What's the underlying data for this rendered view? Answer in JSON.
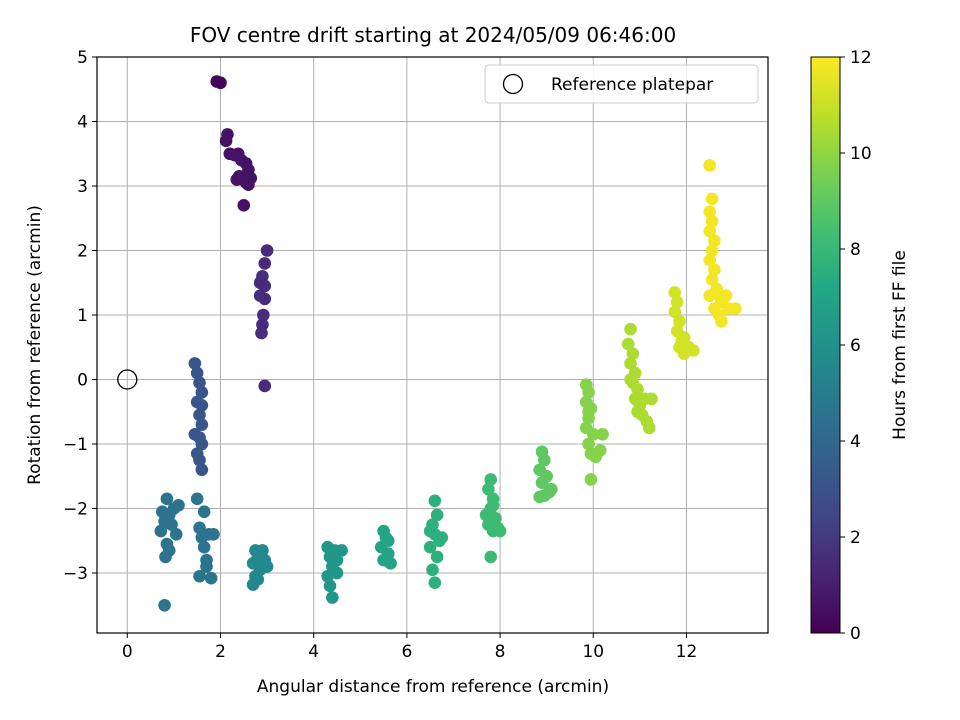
{
  "chart_data": {
    "type": "scatter",
    "title": "FOV centre drift starting at 2024/05/09 06:46:00",
    "xlabel": "Angular distance from reference (arcmin)",
    "ylabel": "Rotation from reference (arcmin)",
    "xlim": [
      -0.65,
      13.75
    ],
    "ylim": [
      -3.93,
      5.0
    ],
    "xticks": [
      0,
      2,
      4,
      6,
      8,
      10,
      12
    ],
    "yticks": [
      -3,
      -2,
      -1,
      0,
      1,
      2,
      3,
      4,
      5
    ],
    "grid": true,
    "legend": {
      "placement": "top-right",
      "entries": [
        "Reference platepar"
      ]
    },
    "reference_point": {
      "x": 0,
      "y": 0
    },
    "colorbar": {
      "label": "Hours from first FF file",
      "range": [
        0,
        12
      ],
      "ticks": [
        0,
        2,
        4,
        6,
        8,
        10,
        12
      ],
      "colormap": "viridis"
    },
    "clusters": [
      {
        "t": 0.1,
        "points": [
          [
            1.92,
            4.62
          ],
          [
            2.0,
            4.6
          ]
        ]
      },
      {
        "t": 0.6,
        "points": [
          [
            2.15,
            3.8
          ],
          [
            2.12,
            3.7
          ],
          [
            2.2,
            3.5
          ],
          [
            2.3,
            3.48
          ],
          [
            2.38,
            3.5
          ],
          [
            2.45,
            3.4
          ],
          [
            2.55,
            3.35
          ],
          [
            2.6,
            3.25
          ],
          [
            2.4,
            3.15
          ],
          [
            2.5,
            3.1
          ],
          [
            2.55,
            3.05
          ],
          [
            2.35,
            3.1
          ],
          [
            2.65,
            3.12
          ],
          [
            2.6,
            3.02
          ],
          [
            2.5,
            2.7
          ]
        ]
      },
      {
        "t": 1.5,
        "points": [
          [
            3.0,
            2.0
          ],
          [
            2.95,
            1.8
          ],
          [
            2.9,
            1.6
          ],
          [
            2.85,
            1.5
          ],
          [
            2.95,
            1.45
          ],
          [
            2.85,
            1.3
          ],
          [
            2.95,
            1.25
          ],
          [
            2.92,
            1.0
          ],
          [
            2.9,
            0.85
          ],
          [
            2.88,
            0.72
          ],
          [
            2.95,
            -0.1
          ]
        ]
      },
      {
        "t": 3.2,
        "points": [
          [
            1.45,
            0.25
          ],
          [
            1.5,
            0.1
          ],
          [
            1.55,
            -0.05
          ],
          [
            1.6,
            -0.2
          ],
          [
            1.5,
            -0.35
          ],
          [
            1.6,
            -0.4
          ],
          [
            1.55,
            -0.55
          ],
          [
            1.6,
            -0.7
          ],
          [
            1.45,
            -0.85
          ],
          [
            1.55,
            -0.9
          ],
          [
            1.6,
            -1.0
          ],
          [
            1.5,
            -1.15
          ],
          [
            1.55,
            -1.25
          ],
          [
            1.6,
            -1.4
          ]
        ]
      },
      {
        "t": 4.6,
        "points": [
          [
            0.75,
            -2.05
          ],
          [
            0.8,
            -2.2
          ],
          [
            0.72,
            -2.35
          ],
          [
            0.85,
            -1.85
          ],
          [
            0.9,
            -2.1
          ],
          [
            0.95,
            -2.25
          ],
          [
            1.0,
            -2.0
          ],
          [
            1.05,
            -2.4
          ],
          [
            0.85,
            -2.55
          ],
          [
            0.9,
            -2.65
          ],
          [
            0.82,
            -2.75
          ],
          [
            1.1,
            -1.95
          ],
          [
            0.8,
            -3.5
          ],
          [
            1.5,
            -1.85
          ],
          [
            1.55,
            -2.3
          ],
          [
            1.6,
            -2.45
          ],
          [
            1.65,
            -2.6
          ],
          [
            1.7,
            -2.8
          ],
          [
            1.55,
            -3.05
          ],
          [
            1.8,
            -3.08
          ],
          [
            1.75,
            -2.4
          ],
          [
            1.65,
            -2.05
          ],
          [
            1.85,
            -2.4
          ],
          [
            1.7,
            -2.9
          ]
        ]
      },
      {
        "t": 5.6,
        "points": [
          [
            2.75,
            -2.65
          ],
          [
            2.8,
            -2.75
          ],
          [
            2.7,
            -2.85
          ],
          [
            2.85,
            -2.95
          ],
          [
            2.75,
            -3.05
          ],
          [
            2.9,
            -2.65
          ],
          [
            2.95,
            -2.8
          ],
          [
            2.8,
            -3.1
          ],
          [
            2.7,
            -3.18
          ],
          [
            3.0,
            -2.9
          ],
          [
            2.85,
            -2.7
          ]
        ]
      },
      {
        "t": 6.3,
        "points": [
          [
            4.3,
            -2.6
          ],
          [
            4.35,
            -2.75
          ],
          [
            4.4,
            -2.9
          ],
          [
            4.3,
            -3.05
          ],
          [
            4.45,
            -2.65
          ],
          [
            4.5,
            -2.8
          ],
          [
            4.35,
            -3.2
          ],
          [
            4.4,
            -3.38
          ],
          [
            4.6,
            -2.65
          ],
          [
            4.5,
            -3.0
          ]
        ]
      },
      {
        "t": 7.0,
        "points": [
          [
            5.5,
            -2.35
          ],
          [
            5.55,
            -2.45
          ],
          [
            5.45,
            -2.6
          ],
          [
            5.6,
            -2.7
          ],
          [
            5.5,
            -2.8
          ],
          [
            5.65,
            -2.85
          ],
          [
            5.6,
            -2.5
          ]
        ]
      },
      {
        "t": 7.6,
        "points": [
          [
            6.6,
            -1.88
          ],
          [
            6.65,
            -2.1
          ],
          [
            6.55,
            -2.25
          ],
          [
            6.6,
            -2.4
          ],
          [
            6.7,
            -2.5
          ],
          [
            6.5,
            -2.6
          ],
          [
            6.65,
            -2.75
          ],
          [
            6.55,
            -2.95
          ],
          [
            6.6,
            -3.15
          ],
          [
            6.75,
            -2.45
          ],
          [
            6.5,
            -2.35
          ]
        ]
      },
      {
        "t": 8.2,
        "points": [
          [
            7.8,
            -1.55
          ],
          [
            7.75,
            -1.7
          ],
          [
            7.85,
            -1.85
          ],
          [
            7.8,
            -2.0
          ],
          [
            7.9,
            -2.15
          ],
          [
            7.75,
            -2.25
          ],
          [
            7.85,
            -2.35
          ],
          [
            7.95,
            -2.3
          ],
          [
            8.0,
            -2.35
          ],
          [
            7.8,
            -2.75
          ],
          [
            7.85,
            -1.95
          ],
          [
            7.7,
            -2.1
          ]
        ]
      },
      {
        "t": 9.0,
        "points": [
          [
            8.9,
            -1.12
          ],
          [
            8.95,
            -1.25
          ],
          [
            8.85,
            -1.4
          ],
          [
            9.0,
            -1.5
          ],
          [
            8.9,
            -1.6
          ],
          [
            9.05,
            -1.75
          ],
          [
            8.95,
            -1.8
          ],
          [
            8.85,
            -1.82
          ],
          [
            9.1,
            -1.7
          ]
        ]
      },
      {
        "t": 9.8,
        "points": [
          [
            9.85,
            -0.08
          ],
          [
            9.9,
            -0.2
          ],
          [
            9.85,
            -0.35
          ],
          [
            9.95,
            -0.45
          ],
          [
            9.9,
            -0.6
          ],
          [
            9.85,
            -0.75
          ],
          [
            10.0,
            -0.85
          ],
          [
            9.9,
            -1.0
          ],
          [
            9.95,
            -1.15
          ],
          [
            10.05,
            -1.2
          ],
          [
            10.15,
            -1.1
          ],
          [
            10.2,
            -0.85
          ],
          [
            9.95,
            -1.55
          ],
          [
            9.9,
            -0.5
          ]
        ]
      },
      {
        "t": 10.5,
        "points": [
          [
            10.8,
            0.78
          ],
          [
            10.75,
            0.55
          ],
          [
            10.85,
            0.4
          ],
          [
            10.8,
            0.25
          ],
          [
            10.9,
            0.1
          ],
          [
            10.85,
            -0.05
          ],
          [
            10.95,
            -0.15
          ],
          [
            10.9,
            -0.3
          ],
          [
            11.0,
            -0.4
          ],
          [
            10.95,
            -0.5
          ],
          [
            11.05,
            -0.55
          ],
          [
            11.1,
            -0.3
          ],
          [
            11.15,
            -0.65
          ],
          [
            11.2,
            -0.75
          ],
          [
            11.25,
            -0.3
          ],
          [
            10.8,
            0.0
          ]
        ]
      },
      {
        "t": 11.2,
        "points": [
          [
            11.75,
            1.35
          ],
          [
            11.8,
            1.2
          ],
          [
            11.75,
            1.05
          ],
          [
            11.85,
            0.9
          ],
          [
            11.8,
            0.75
          ],
          [
            11.9,
            0.6
          ],
          [
            11.85,
            0.5
          ],
          [
            11.95,
            0.4
          ],
          [
            12.05,
            0.5
          ],
          [
            12.15,
            0.45
          ],
          [
            11.95,
            0.65
          ]
        ]
      },
      {
        "t": 11.8,
        "points": [
          [
            12.5,
            3.32
          ],
          [
            12.55,
            2.8
          ],
          [
            12.5,
            2.6
          ],
          [
            12.55,
            2.45
          ],
          [
            12.5,
            2.3
          ],
          [
            12.6,
            2.15
          ],
          [
            12.55,
            2.0
          ],
          [
            12.5,
            1.85
          ],
          [
            12.6,
            1.7
          ],
          [
            12.55,
            1.55
          ],
          [
            12.65,
            1.4
          ],
          [
            12.7,
            1.3
          ],
          [
            12.75,
            1.2
          ],
          [
            12.6,
            1.1
          ],
          [
            12.7,
            1.0
          ],
          [
            12.75,
            0.9
          ],
          [
            12.9,
            1.1
          ],
          [
            13.05,
            1.1
          ],
          [
            12.85,
            1.3
          ],
          [
            12.5,
            1.3
          ]
        ]
      }
    ]
  }
}
